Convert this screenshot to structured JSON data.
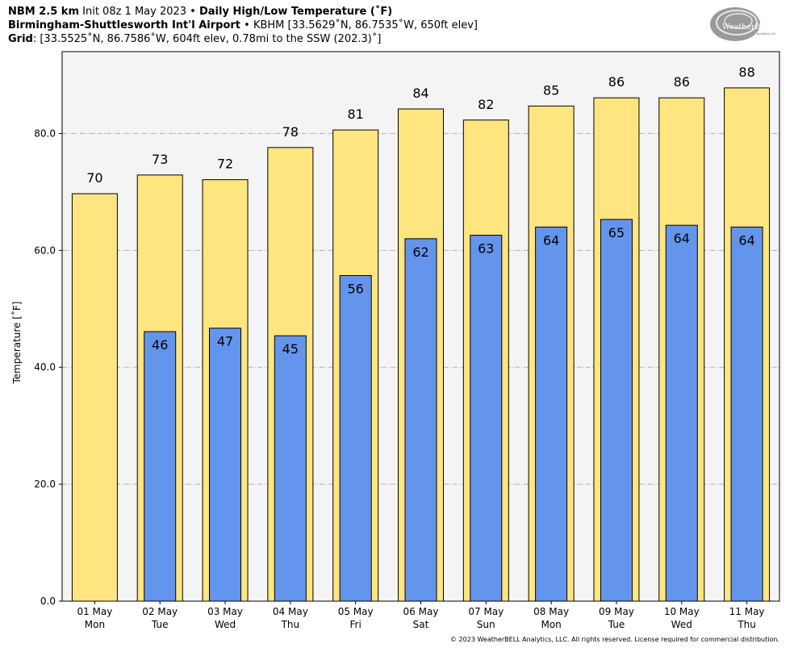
{
  "header": {
    "line1": {
      "model": "NBM 2.5 km",
      "init": " Init 08z 1 May 2023 • ",
      "product": "Daily High/Low Temperature (˚F)"
    },
    "line2": {
      "station": "Birmingham-Shuttlesworth Int'l Airport",
      "details": " • KBHM [33.5629˚N, 86.7535˚W, 650ft elev]"
    },
    "line3": {
      "label": "Grid",
      "details": ": [33.5525˚N, 86.7586˚W, 604ft elev, 0.78mi to the SSW (202.3)˚]"
    }
  },
  "logo": {
    "text": "WeatherBELL",
    "subtext": "Analytics LLC",
    "icon": "weatherbell-swirl-logo"
  },
  "copyright": "© 2023 WeatherBELL Analytics, LLC. All rights reserved. License required for commercial distribution.",
  "chart_data": {
    "type": "bar",
    "ylabel": "Temperature [˚F]",
    "ylim": [
      0,
      94
    ],
    "yticks": [
      "0.0",
      "20.0",
      "40.0",
      "60.0",
      "80.0"
    ],
    "ytick_values": [
      0,
      20,
      40,
      60,
      80
    ],
    "grid": true,
    "categories": [
      [
        "01 May",
        "Mon"
      ],
      [
        "02 May",
        "Tue"
      ],
      [
        "03 May",
        "Wed"
      ],
      [
        "04 May",
        "Thu"
      ],
      [
        "05 May",
        "Fri"
      ],
      [
        "06 May",
        "Sat"
      ],
      [
        "07 May",
        "Sun"
      ],
      [
        "08 May",
        "Mon"
      ],
      [
        "09 May",
        "Tue"
      ],
      [
        "10 May",
        "Wed"
      ],
      [
        "11 May",
        "Thu"
      ]
    ],
    "series": [
      {
        "key": "high",
        "color": "#FFE57F",
        "values": [
          69.7,
          72.9,
          72.1,
          77.6,
          80.6,
          84.2,
          82.3,
          84.7,
          86.1,
          86.1,
          87.8
        ],
        "labels": [
          "70",
          "73",
          "72",
          "78",
          "81",
          "84",
          "82",
          "85",
          "86",
          "86",
          "88"
        ]
      },
      {
        "key": "low",
        "color": "#6495ED",
        "values": [
          null,
          46.1,
          46.7,
          45.4,
          55.7,
          62.0,
          62.6,
          64.0,
          65.3,
          64.3,
          64.0
        ],
        "labels": [
          "",
          "46",
          "47",
          "45",
          "56",
          "62",
          "63",
          "64",
          "65",
          "64",
          "64"
        ]
      }
    ],
    "colors": {
      "plot_background": "#F4F4F4",
      "grid": "#B0B0B0",
      "bar_edge": "#000000"
    }
  }
}
